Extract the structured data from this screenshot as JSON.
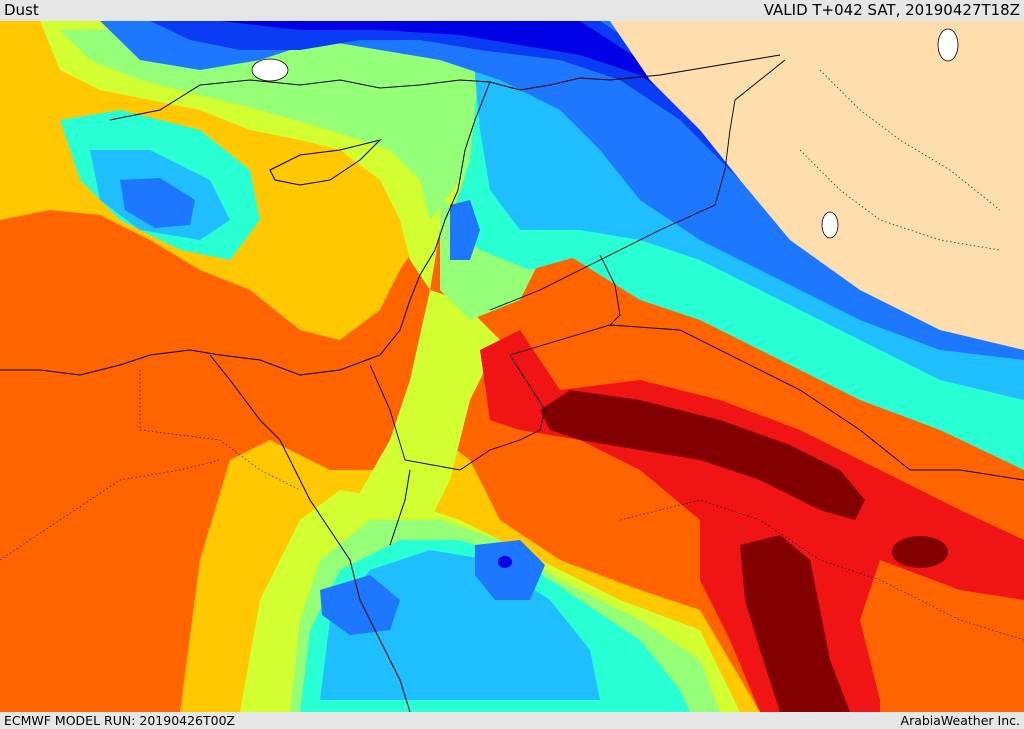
{
  "header": {
    "title": "Dust",
    "valid": "VALID T+042 SAT, 20190427T18Z"
  },
  "footer": {
    "model_run": "ECMWF MODEL RUN: 20190426T00Z",
    "credit": "ArabiaWeather Inc."
  },
  "colors": {
    "land_no_data": "#ffdead",
    "level_1": "#0000e6",
    "level_2": "#0a3cf5",
    "level_3": "#1e78ff",
    "level_4": "#1ebeff",
    "level_5": "#28ffd2",
    "level_6": "#96ff78",
    "level_7": "#d2ff32",
    "level_8": "#ffc800",
    "level_9": "#ff6400",
    "level_10": "#f01414",
    "level_11": "#820000",
    "borders": "#000000"
  }
}
